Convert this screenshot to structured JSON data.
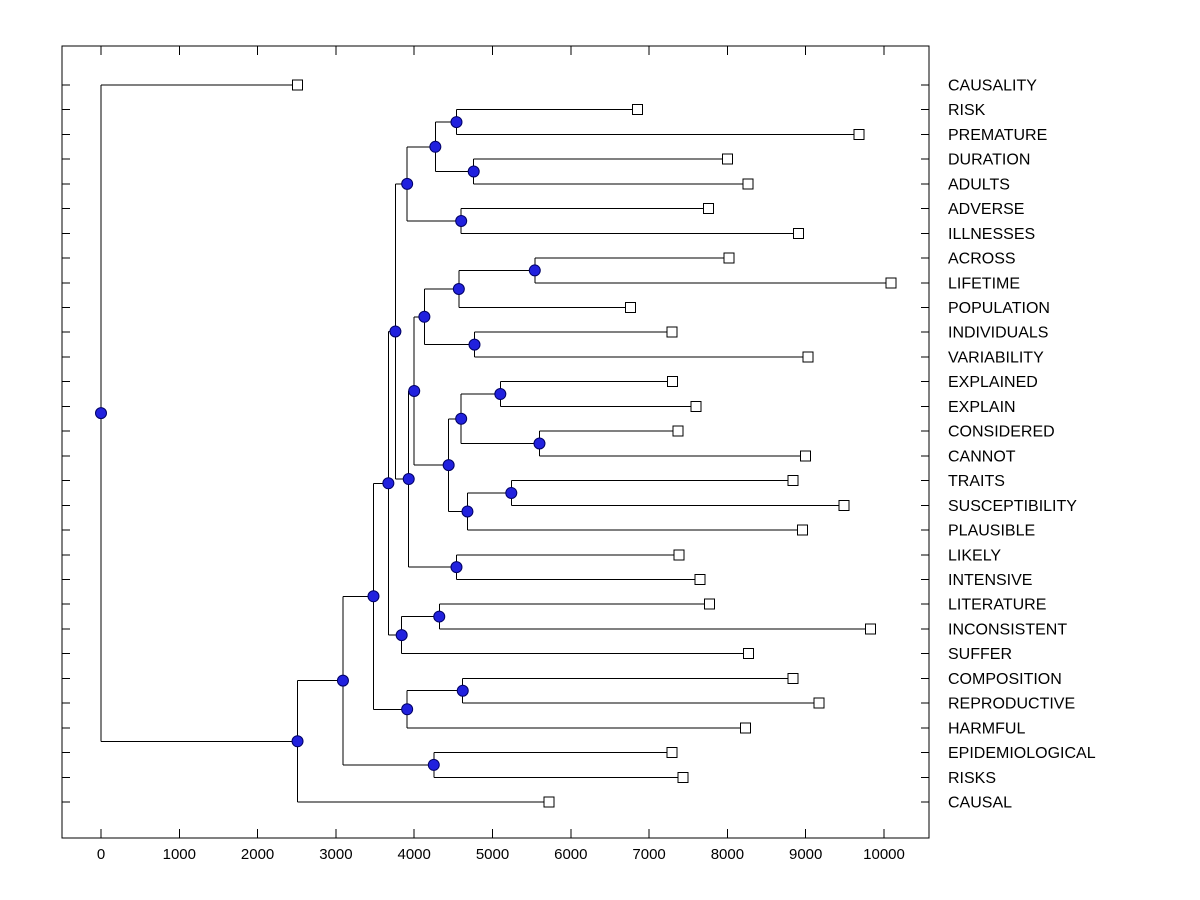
{
  "figure": {
    "background": "#ffffff"
  },
  "chart_data": {
    "type": "dendrogram",
    "orientation": "horizontal, root at left, leaf labels on right",
    "title": "",
    "xlabel": "",
    "ylabel": "",
    "grid": false,
    "x_axis": {
      "ticks": [
        0,
        1000,
        2000,
        3000,
        4000,
        5000,
        6000,
        7000,
        8000,
        9000,
        10000
      ],
      "xlim": [
        -500,
        10600
      ]
    },
    "colors": {
      "branch": "#000000",
      "axis": "#000000",
      "text": "#000000",
      "node_dot_fill": "#2121de",
      "node_dot_edge": "#000066",
      "leaf_marker_fill": "#ffffff",
      "leaf_marker_edge": "#000000"
    },
    "leaf_order": [
      "CAUSALITY",
      "RISK",
      "PREMATURE",
      "DURATION",
      "ADULTS",
      "ADVERSE",
      "ILLNESSES",
      "ACROSS",
      "LIFETIME",
      "POPULATION",
      "INDIVIDUALS",
      "VARIABILITY",
      "EXPLAINED",
      "EXPLAIN",
      "CONSIDERED",
      "CANNOT",
      "TRAITS",
      "SUSCEPTIBILITY",
      "PLAUSIBLE",
      "LIKELY",
      "INTENSIVE",
      "LITERATURE",
      "INCONSISTENT",
      "SUFFER",
      "COMPOSITION",
      "REPRODUCTIVE",
      "HARMFUL",
      "EPIDEMIOLOGICAL",
      "RISKS",
      "CAUSAL"
    ],
    "tree": {
      "d": 0,
      "c": [
        {
          "name": "CAUSALITY",
          "d": 2510
        },
        {
          "d": 2510,
          "c": [
            {
              "d": 3090,
              "c": [
                {
                  "d": 3480,
                  "c": [
                    {
                      "d": 3670,
                      "c": [
                        {
                          "d": 3760,
                          "c": [
                            {
                              "d": 3910,
                              "c": [
                                {
                                  "d": 4270,
                                  "c": [
                                    {
                                      "d": 4540,
                                      "c": [
                                        {
                                          "name": "RISK",
                                          "d": 6850
                                        },
                                        {
                                          "name": "PREMATURE",
                                          "d": 9680
                                        }
                                      ]
                                    },
                                    {
                                      "d": 4760,
                                      "c": [
                                        {
                                          "name": "DURATION",
                                          "d": 8000
                                        },
                                        {
                                          "name": "ADULTS",
                                          "d": 8260
                                        }
                                      ]
                                    }
                                  ]
                                },
                                {
                                  "d": 4600,
                                  "c": [
                                    {
                                      "name": "ADVERSE",
                                      "d": 7760
                                    },
                                    {
                                      "name": "ILLNESSES",
                                      "d": 8910
                                    }
                                  ]
                                }
                              ]
                            },
                            {
                              "d": 3930,
                              "c": [
                                {
                                  "d": 4000,
                                  "c": [
                                    {
                                      "d": 4130,
                                      "c": [
                                        {
                                          "d": 4570,
                                          "c": [
                                            {
                                              "d": 5540,
                                              "c": [
                                                {
                                                  "name": "ACROSS",
                                                  "d": 8020
                                                },
                                                {
                                                  "name": "LIFETIME",
                                                  "d": 10090
                                                }
                                              ]
                                            },
                                            {
                                              "name": "POPULATION",
                                              "d": 6760
                                            }
                                          ]
                                        },
                                        {
                                          "d": 4770,
                                          "c": [
                                            {
                                              "name": "INDIVIDUALS",
                                              "d": 7290
                                            },
                                            {
                                              "name": "VARIABILITY",
                                              "d": 9030
                                            }
                                          ]
                                        }
                                      ]
                                    },
                                    {
                                      "d": 4440,
                                      "c": [
                                        {
                                          "d": 4600,
                                          "c": [
                                            {
                                              "d": 5100,
                                              "c": [
                                                {
                                                  "name": "EXPLAINED",
                                                  "d": 7300
                                                },
                                                {
                                                  "name": "EXPLAIN",
                                                  "d": 7600
                                                }
                                              ]
                                            },
                                            {
                                              "d": 5600,
                                              "c": [
                                                {
                                                  "name": "CONSIDERED",
                                                  "d": 7370
                                                },
                                                {
                                                  "name": "CANNOT",
                                                  "d": 9000
                                                }
                                              ]
                                            }
                                          ]
                                        },
                                        {
                                          "d": 4680,
                                          "c": [
                                            {
                                              "d": 5240,
                                              "c": [
                                                {
                                                  "name": "TRAITS",
                                                  "d": 8840
                                                },
                                                {
                                                  "name": "SUSCEPTIBILITY",
                                                  "d": 9490
                                                }
                                              ]
                                            },
                                            {
                                              "name": "PLAUSIBLE",
                                              "d": 8960
                                            }
                                          ]
                                        }
                                      ]
                                    }
                                  ]
                                },
                                {
                                  "d": 4540,
                                  "c": [
                                    {
                                      "name": "LIKELY",
                                      "d": 7380
                                    },
                                    {
                                      "name": "INTENSIVE",
                                      "d": 7650
                                    }
                                  ]
                                }
                              ]
                            }
                          ]
                        },
                        {
                          "d": 3840,
                          "c": [
                            {
                              "d": 4320,
                              "c": [
                                {
                                  "name": "LITERATURE",
                                  "d": 7770
                                },
                                {
                                  "name": "INCONSISTENT",
                                  "d": 9830
                                }
                              ]
                            },
                            {
                              "name": "SUFFER",
                              "d": 8270
                            }
                          ]
                        }
                      ]
                    },
                    {
                      "d": 3910,
                      "c": [
                        {
                          "d": 4620,
                          "c": [
                            {
                              "name": "COMPOSITION",
                              "d": 8840
                            },
                            {
                              "name": "REPRODUCTIVE",
                              "d": 9170
                            }
                          ]
                        },
                        {
                          "name": "HARMFUL",
                          "d": 8230
                        }
                      ]
                    }
                  ]
                },
                {
                  "d": 4250,
                  "c": [
                    {
                      "name": "EPIDEMIOLOGICAL",
                      "d": 7290
                    },
                    {
                      "name": "RISKS",
                      "d": 7430
                    }
                  ]
                }
              ]
            },
            {
              "name": "CAUSAL",
              "d": 5720
            }
          ]
        }
      ]
    }
  }
}
